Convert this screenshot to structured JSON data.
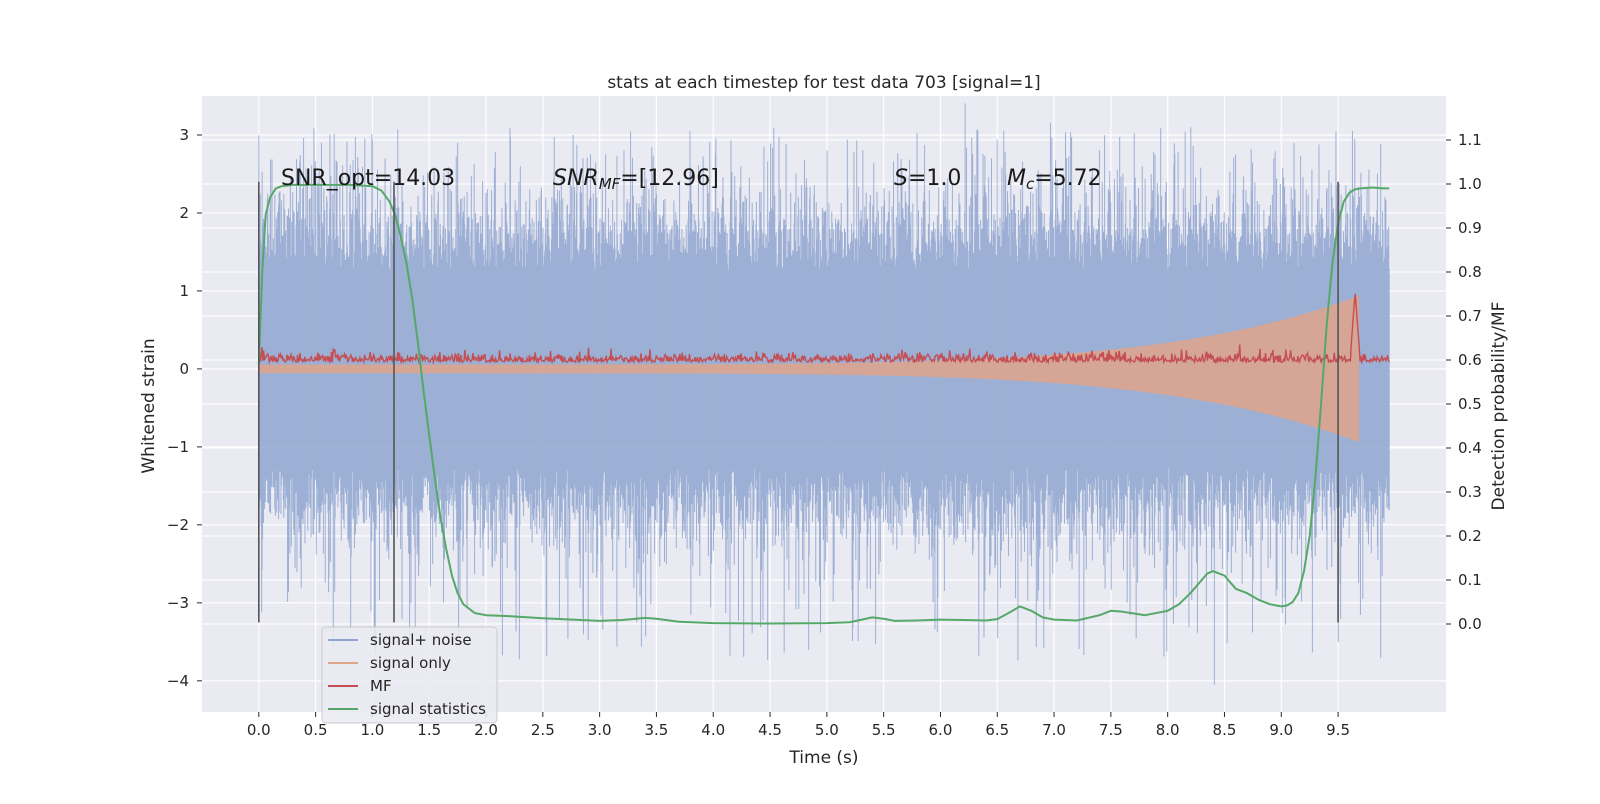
{
  "chart_data": {
    "type": "line",
    "title": "stats at each timestep for test data 703 [signal=1]",
    "xlabel": "Time (s)",
    "ylabel_left": "Whitened strain",
    "ylabel_right": "Detection probability/MF",
    "xlim": [
      -0.5,
      10.45
    ],
    "ylim_left": [
      -4.4,
      3.5
    ],
    "ylim_right": [
      -0.2,
      1.2
    ],
    "x_ticks": [
      0.0,
      0.5,
      1.0,
      1.5,
      2.0,
      2.5,
      3.0,
      3.5,
      4.0,
      4.5,
      5.0,
      5.5,
      6.0,
      6.5,
      7.0,
      7.5,
      8.0,
      8.5,
      9.0,
      9.5
    ],
    "x_tick_labels": [
      "0.0",
      "0.5",
      "1.0",
      "1.5",
      "2.0",
      "2.5",
      "3.0",
      "3.5",
      "4.0",
      "4.5",
      "5.0",
      "5.5",
      "6.0",
      "6.5",
      "7.0",
      "7.5",
      "8.0",
      "8.5",
      "9.0",
      "9.5"
    ],
    "y_left_ticks": [
      3,
      2,
      1,
      0,
      -1,
      -2,
      -3,
      -4
    ],
    "y_left_tick_labels": [
      "3",
      "2",
      "1",
      "0",
      "−1",
      "−2",
      "−3",
      "−4"
    ],
    "y_right_ticks": [
      1.1,
      1.0,
      0.9,
      0.8,
      0.7,
      0.6,
      0.5,
      0.4,
      0.3,
      0.2,
      0.1,
      0.0
    ],
    "y_right_tick_labels": [
      "1.1",
      "1.0",
      "0.9",
      "0.8",
      "0.7",
      "0.6",
      "0.5",
      "0.4",
      "0.3",
      "0.2",
      "0.1",
      "0.0"
    ],
    "grid": true,
    "legend_position": "lower-left",
    "annotations": {
      "snr_opt": "SNR_opt=14.03",
      "snr_mf_var": "SNR",
      "snr_mf_sub": "MF",
      "snr_mf_value": "=[12.96]",
      "s_var": "S",
      "s_value": "=1.0",
      "mc_var": "M",
      "mc_sub": "c",
      "mc_value": "=5.72"
    },
    "vertical_lines_x": [
      0.0,
      1.19,
      9.5
    ],
    "series": [
      {
        "name": "signal+ noise",
        "color": "#8fa5cf",
        "axis": "left",
        "kind": "noise",
        "t_start": 0.0,
        "t_end": 9.95,
        "core_amplitude": 1.25,
        "peak_amplitude": 3.1,
        "min_value": -4.05
      },
      {
        "name": "signal only",
        "color": "#dfa58c",
        "axis": "left",
        "kind": "chirp",
        "t_start": 0.0,
        "t_end": 9.68,
        "amplitude_start": 0.05,
        "amplitude_end": 0.93
      },
      {
        "name": "MF",
        "color": "#c44e52",
        "axis": "right",
        "kind": "mf",
        "t_start": 0.0,
        "t_end": 9.95,
        "baseline": 0.595,
        "peak_x": 9.65,
        "peak_value": 0.755
      },
      {
        "name": "signal statistics",
        "color": "#55a868",
        "axis": "right",
        "kind": "line",
        "x": [
          0.0,
          0.03,
          0.06,
          0.1,
          0.15,
          0.2,
          0.3,
          0.5,
          0.8,
          1.0,
          1.08,
          1.15,
          1.2,
          1.25,
          1.3,
          1.35,
          1.4,
          1.45,
          1.5,
          1.55,
          1.6,
          1.65,
          1.7,
          1.75,
          1.8,
          1.9,
          2.0,
          2.2,
          2.5,
          3.0,
          3.2,
          3.4,
          3.5,
          3.7,
          4.0,
          4.5,
          5.0,
          5.2,
          5.4,
          5.5,
          5.6,
          5.8,
          6.0,
          6.2,
          6.4,
          6.5,
          6.6,
          6.7,
          6.8,
          6.9,
          7.0,
          7.2,
          7.4,
          7.5,
          7.6,
          7.8,
          8.0,
          8.1,
          8.2,
          8.3,
          8.35,
          8.4,
          8.5,
          8.6,
          8.7,
          8.8,
          8.9,
          9.0,
          9.05,
          9.1,
          9.15,
          9.2,
          9.25,
          9.3,
          9.35,
          9.4,
          9.45,
          9.5,
          9.55,
          9.6,
          9.65,
          9.7,
          9.8,
          9.9,
          9.95
        ],
        "y": [
          0.59,
          0.8,
          0.93,
          0.97,
          0.99,
          0.995,
          0.998,
          0.998,
          0.998,
          0.995,
          0.985,
          0.96,
          0.93,
          0.88,
          0.82,
          0.74,
          0.64,
          0.53,
          0.43,
          0.33,
          0.24,
          0.17,
          0.11,
          0.07,
          0.045,
          0.025,
          0.02,
          0.018,
          0.013,
          0.007,
          0.009,
          0.014,
          0.012,
          0.005,
          0.002,
          0.001,
          0.002,
          0.004,
          0.015,
          0.012,
          0.007,
          0.008,
          0.01,
          0.009,
          0.008,
          0.011,
          0.025,
          0.04,
          0.03,
          0.015,
          0.01,
          0.008,
          0.02,
          0.03,
          0.028,
          0.02,
          0.03,
          0.045,
          0.07,
          0.1,
          0.115,
          0.12,
          0.11,
          0.08,
          0.07,
          0.055,
          0.045,
          0.04,
          0.042,
          0.05,
          0.07,
          0.12,
          0.2,
          0.33,
          0.5,
          0.68,
          0.82,
          0.91,
          0.96,
          0.98,
          0.988,
          0.99,
          0.992,
          0.99,
          0.99
        ]
      }
    ]
  }
}
